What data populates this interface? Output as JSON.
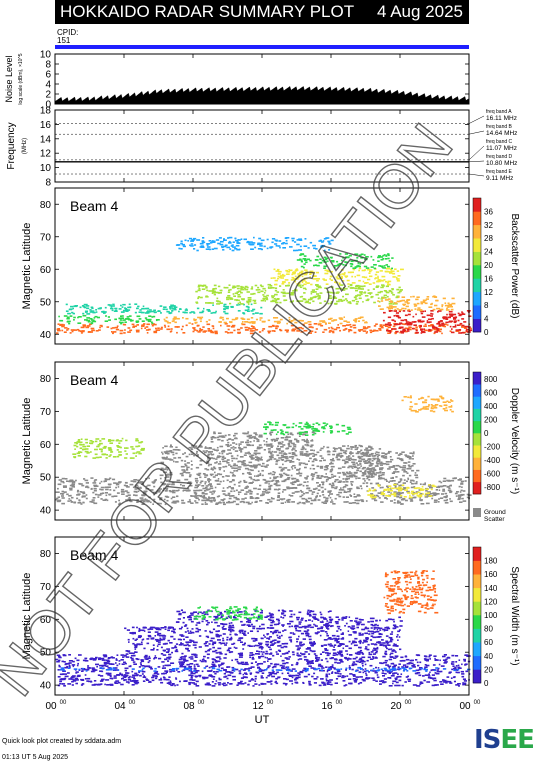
{
  "header": {
    "title": "HOKKAIDO RADAR SUMMARY PLOT",
    "date": "4 Aug 2025",
    "cpid_label": "CPID:",
    "cpid_value": "151"
  },
  "footer": {
    "credit": "Quick look plot created by sddata.adm",
    "timestamp": "01:13 UT  5 Aug 2025"
  },
  "logo": {
    "text_a": "IS",
    "text_b": "EE"
  },
  "watermark": "NOT FOR PUBLICATION",
  "chart_data": [
    {
      "type": "area",
      "id": "noise-level",
      "ylabel": "Noise Level",
      "ylabel_sub": "log scale (dBm), ×10^5",
      "yticks": [
        "0",
        "2",
        "4",
        "6",
        "8",
        "10"
      ],
      "ylim": [
        0,
        10
      ],
      "x": [
        0,
        2,
        4,
        6,
        8,
        10,
        12,
        14,
        16,
        18,
        20,
        22,
        24
      ],
      "values": [
        0.8,
        0.9,
        1.5,
        2.4,
        2.7,
        2.8,
        2.9,
        3.0,
        2.9,
        2.7,
        2.2,
        1.3,
        0.9
      ],
      "color": "#000000"
    },
    {
      "type": "line",
      "id": "frequency",
      "ylabel": "Frequency",
      "ylabel_sub": "(MHz)",
      "yticks": [
        "8",
        "10",
        "12",
        "14",
        "16",
        "18"
      ],
      "ylim": [
        8,
        18
      ],
      "bands": [
        {
          "label": "freq band A",
          "value_text": "16.11 MHz",
          "mhz": 16.11
        },
        {
          "label": "freq band B",
          "value_text": "14.64 MHz",
          "mhz": 14.64
        },
        {
          "label": "freq band C",
          "value_text": "11.07 MHz",
          "mhz": 11.07
        },
        {
          "label": "freq band D",
          "value_text": "10.80 MHz",
          "mhz": 10.8
        },
        {
          "label": "freq band E",
          "value_text": "9.11 MHz",
          "mhz": 9.11
        }
      ],
      "trace_mhz": 10.8
    },
    {
      "type": "heatmap",
      "id": "backscatter-power",
      "beam_label": "Beam  4",
      "ylabel": "Magnetic Latitude",
      "yticks": [
        "40",
        "50",
        "60",
        "70",
        "80"
      ],
      "ylim": [
        37,
        85
      ],
      "colorbar_label": "Backscatter Power (dB)",
      "colorbar_ticks": [
        "0",
        "4",
        "8",
        "12",
        "16",
        "20",
        "24",
        "28",
        "32",
        "36"
      ],
      "colorbar_colors": [
        "#3b1ec9",
        "#1f6cff",
        "#1ea7ff",
        "#1fd3a6",
        "#2ad84a",
        "#a6e23a",
        "#f2e93a",
        "#ffb23a",
        "#ff6a1f",
        "#e0201f"
      ],
      "regions": [
        {
          "x0": 0.0,
          "x1": 24.0,
          "y0": 40.5,
          "y1": 43.5,
          "color": "#ff6a1f"
        },
        {
          "x0": 0.0,
          "x1": 6.0,
          "y0": 43.5,
          "y1": 46.0,
          "color": "#2ad84a"
        },
        {
          "x0": 6.0,
          "x1": 18.0,
          "y0": 43.5,
          "y1": 45.5,
          "color": "#ffb23a"
        },
        {
          "x0": 0.5,
          "x1": 12.0,
          "y0": 46.5,
          "y1": 49.5,
          "color": "#1fd3a6"
        },
        {
          "x0": 8.0,
          "x1": 20.0,
          "y0": 49.5,
          "y1": 55.5,
          "color": "#a6e23a"
        },
        {
          "x0": 12.5,
          "x1": 20.0,
          "y0": 55.5,
          "y1": 60.5,
          "color": "#f2e93a"
        },
        {
          "x0": 14.0,
          "x1": 19.5,
          "y0": 60.5,
          "y1": 65.0,
          "color": "#2ad84a"
        },
        {
          "x0": 7.0,
          "x1": 16.0,
          "y0": 66.0,
          "y1": 70.0,
          "color": "#1ea7ff"
        },
        {
          "x0": 19.0,
          "x1": 24.0,
          "y0": 40.5,
          "y1": 47.5,
          "color": "#e0201f"
        },
        {
          "x0": 18.5,
          "x1": 23.0,
          "y0": 47.5,
          "y1": 52.0,
          "color": "#ffb23a"
        }
      ]
    },
    {
      "type": "heatmap",
      "id": "doppler-velocity",
      "beam_label": "Beam  4",
      "ylabel": "Magnetic Latitude",
      "yticks": [
        "40",
        "50",
        "60",
        "70",
        "80"
      ],
      "ylim": [
        37,
        85
      ],
      "colorbar_label": "Doppler Velocity (m s⁻¹)",
      "colorbar_ticks": [
        "800",
        "600",
        "400",
        "200",
        "0",
        "-200",
        "-400",
        "-600",
        "-800"
      ],
      "colorbar_colors": [
        "#3b1ec9",
        "#1f6cff",
        "#1ea7ff",
        "#1fd3a6",
        "#2ad84a",
        "#a6e23a",
        "#f2e93a",
        "#ffb23a",
        "#ff6a1f",
        "#e0201f"
      ],
      "ground_scatter_label_a": "Ground",
      "ground_scatter_label_b": "Scatter",
      "ground_scatter_color": "#8a8a8a",
      "regions": [
        {
          "x0": 0.0,
          "x1": 24.0,
          "y0": 42.0,
          "y1": 50.0,
          "color": "#8a8a8a"
        },
        {
          "x0": 6.0,
          "x1": 19.0,
          "y0": 50.0,
          "y1": 60.0,
          "color": "#8a8a8a"
        },
        {
          "x0": 9.0,
          "x1": 15.0,
          "y0": 60.0,
          "y1": 64.0,
          "color": "#8a8a8a"
        },
        {
          "x0": 17.0,
          "x1": 21.0,
          "y0": 50.0,
          "y1": 58.0,
          "color": "#8a8a8a"
        },
        {
          "x0": 18.0,
          "x1": 22.0,
          "y0": 44.0,
          "y1": 48.0,
          "color": "#f2e93a"
        },
        {
          "x0": 12.0,
          "x1": 17.0,
          "y0": 63.0,
          "y1": 67.0,
          "color": "#2ad84a"
        },
        {
          "x0": 20.0,
          "x1": 23.0,
          "y0": 70.0,
          "y1": 75.0,
          "color": "#ffb23a"
        },
        {
          "x0": 1.0,
          "x1": 5.0,
          "y0": 56.0,
          "y1": 62.0,
          "color": "#a6e23a"
        }
      ]
    },
    {
      "type": "heatmap",
      "id": "spectral-width",
      "beam_label": "Beam  4",
      "ylabel": "Magnetic Latitude",
      "yticks": [
        "40",
        "50",
        "60",
        "70",
        "80"
      ],
      "ylim": [
        37,
        85
      ],
      "colorbar_label": "Spectral Width (m s⁻¹)",
      "colorbar_ticks": [
        "0",
        "20",
        "40",
        "60",
        "80",
        "100",
        "120",
        "140",
        "160",
        "180"
      ],
      "colorbar_colors": [
        "#3b1ec9",
        "#1f6cff",
        "#1ea7ff",
        "#1fd3a6",
        "#2ad84a",
        "#a6e23a",
        "#f2e93a",
        "#ffb23a",
        "#ff6a1f",
        "#e0201f"
      ],
      "regions": [
        {
          "x0": 0.0,
          "x1": 24.0,
          "y0": 40.0,
          "y1": 49.5,
          "color": "#3b1ec9"
        },
        {
          "x0": 4.0,
          "x1": 20.0,
          "y0": 49.5,
          "y1": 58.0,
          "color": "#3b1ec9"
        },
        {
          "x0": 7.0,
          "x1": 16.0,
          "y0": 58.0,
          "y1": 63.0,
          "color": "#3b1ec9"
        },
        {
          "x0": 15.0,
          "x1": 20.0,
          "y0": 58.0,
          "y1": 61.0,
          "color": "#3b1ec9"
        },
        {
          "x0": 0.0,
          "x1": 24.0,
          "y0": 44.5,
          "y1": 45.5,
          "color": "#1f6cff"
        },
        {
          "x0": 19.0,
          "x1": 22.0,
          "y0": 62.0,
          "y1": 75.0,
          "color": "#ff6a1f"
        },
        {
          "x0": 8.0,
          "x1": 12.0,
          "y0": 60.0,
          "y1": 64.0,
          "color": "#2ad84a"
        }
      ]
    }
  ],
  "x_axis": {
    "xlabel": "UT",
    "xlim": [
      0,
      24
    ],
    "ticks": [
      {
        "hour": 0,
        "main": "00",
        "sup": "00"
      },
      {
        "hour": 4,
        "main": "04",
        "sup": "00"
      },
      {
        "hour": 8,
        "main": "08",
        "sup": "00"
      },
      {
        "hour": 12,
        "main": "12",
        "sup": "00"
      },
      {
        "hour": 16,
        "main": "16",
        "sup": "00"
      },
      {
        "hour": 20,
        "main": "20",
        "sup": "00"
      },
      {
        "hour": 24,
        "main": "00",
        "sup": "00"
      }
    ]
  }
}
